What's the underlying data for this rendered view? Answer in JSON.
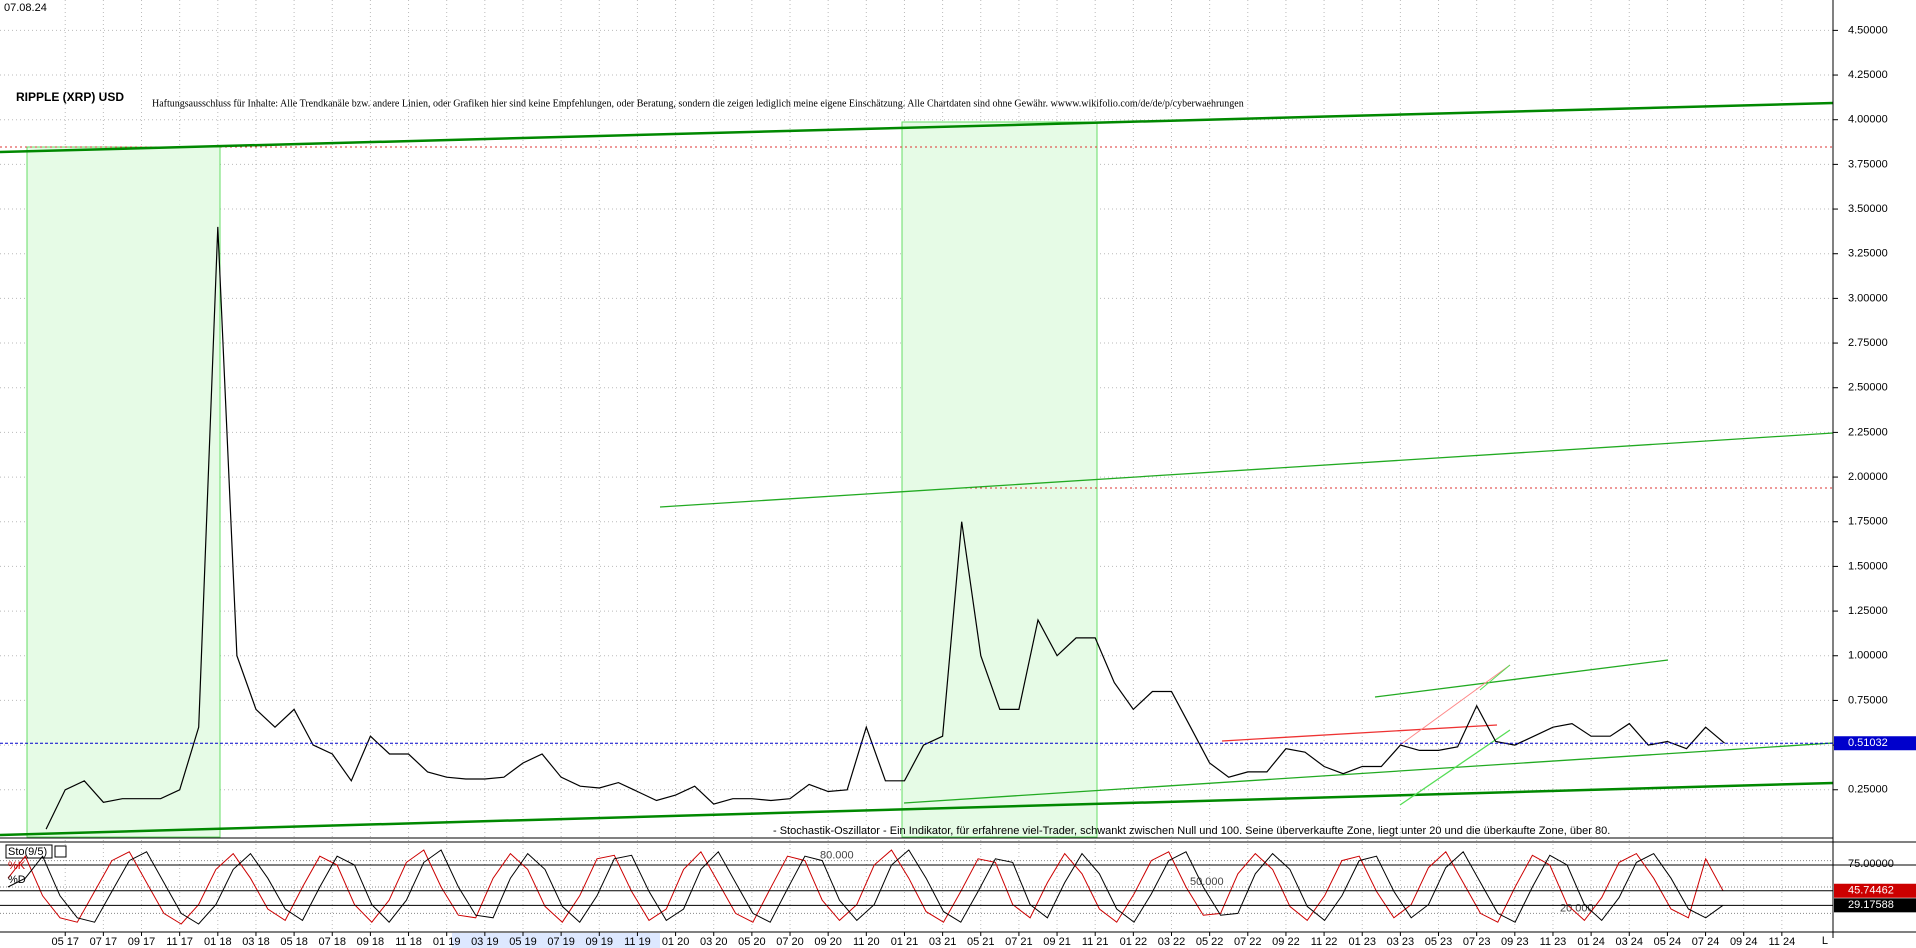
{
  "chart_data": [
    {
      "type": "line",
      "date": "07.08.24",
      "title": "RIPPLE (XRP) USD",
      "subtitle": "Haftungsausschluss für Inhalte: Alle Trendkanäle bzw. andere Linien, oder Grafiken hier sind keine Empfehlungen, oder Beratung, sondern die zeigen lediglich meine eigene Einschätzung. Alle Chartdaten sind ohne Gewähr.  wwww.wikifolio.com/de/de/p/cyberwaehrungen",
      "x": [
        "2017-04",
        "2017-05",
        "2017-06",
        "2017-07",
        "2017-08",
        "2017-09",
        "2017-10",
        "2017-11",
        "2017-12",
        "2018-01",
        "2018-02",
        "2018-03",
        "2018-04",
        "2018-05",
        "2018-06",
        "2018-07",
        "2018-08",
        "2018-09",
        "2018-10",
        "2018-11",
        "2018-12",
        "2019-01",
        "2019-02",
        "2019-03",
        "2019-04",
        "2019-05",
        "2019-06",
        "2019-07",
        "2019-08",
        "2019-09",
        "2019-10",
        "2019-11",
        "2019-12",
        "2020-01",
        "2020-02",
        "2020-03",
        "2020-04",
        "2020-05",
        "2020-06",
        "2020-07",
        "2020-08",
        "2020-09",
        "2020-10",
        "2020-11",
        "2020-12",
        "2021-01",
        "2021-02",
        "2021-03",
        "2021-04",
        "2021-05",
        "2021-06",
        "2021-07",
        "2021-08",
        "2021-09",
        "2021-10",
        "2021-11",
        "2021-12",
        "2022-01",
        "2022-02",
        "2022-03",
        "2022-04",
        "2022-05",
        "2022-06",
        "2022-07",
        "2022-08",
        "2022-09",
        "2022-10",
        "2022-11",
        "2022-12",
        "2023-01",
        "2023-02",
        "2023-03",
        "2023-04",
        "2023-05",
        "2023-06",
        "2023-07",
        "2023-08",
        "2023-09",
        "2023-10",
        "2023-11",
        "2023-12",
        "2024-01",
        "2024-02",
        "2024-03",
        "2024-04",
        "2024-05",
        "2024-06",
        "2024-07",
        "2024-08"
      ],
      "values": [
        0.03,
        0.25,
        0.3,
        0.18,
        0.2,
        0.2,
        0.2,
        0.25,
        0.6,
        3.4,
        1.0,
        0.7,
        0.6,
        0.7,
        0.5,
        0.45,
        0.3,
        0.55,
        0.45,
        0.45,
        0.35,
        0.32,
        0.31,
        0.31,
        0.32,
        0.4,
        0.45,
        0.32,
        0.27,
        0.26,
        0.29,
        0.24,
        0.19,
        0.22,
        0.27,
        0.17,
        0.2,
        0.2,
        0.19,
        0.2,
        0.28,
        0.24,
        0.25,
        0.6,
        0.3,
        0.3,
        0.5,
        0.55,
        1.75,
        1.0,
        0.7,
        0.7,
        1.2,
        1.0,
        1.1,
        1.1,
        0.85,
        0.7,
        0.8,
        0.8,
        0.6,
        0.4,
        0.32,
        0.35,
        0.35,
        0.48,
        0.46,
        0.38,
        0.34,
        0.38,
        0.38,
        0.5,
        0.47,
        0.47,
        0.49,
        0.72,
        0.52,
        0.5,
        0.55,
        0.6,
        0.62,
        0.55,
        0.55,
        0.62,
        0.5,
        0.52,
        0.48,
        0.6,
        0.51032
      ],
      "color": "#000000",
      "last_value_color": "#0000cc",
      "xlim": [
        "2017-02",
        "2025-01"
      ],
      "xticks": [
        {
          "value": "2017-05",
          "label": "05 17"
        },
        {
          "value": "2017-07",
          "label": "07 17"
        },
        {
          "value": "2017-09",
          "label": "09 17"
        },
        {
          "value": "2017-11",
          "label": "11 17"
        },
        {
          "value": "2018-01",
          "label": "01 18"
        },
        {
          "value": "2018-03",
          "label": "03 18"
        },
        {
          "value": "2018-05",
          "label": "05 18"
        },
        {
          "value": "2018-07",
          "label": "07 18"
        },
        {
          "value": "2018-09",
          "label": "09 18"
        },
        {
          "value": "2018-11",
          "label": "11 18"
        },
        {
          "value": "2019-01",
          "label": "01 19"
        },
        {
          "value": "2019-03",
          "label": "03 19"
        },
        {
          "value": "2019-05",
          "label": "05 19"
        },
        {
          "value": "2019-07",
          "label": "07 19"
        },
        {
          "value": "2019-09",
          "label": "09 19"
        },
        {
          "value": "2019-11",
          "label": "11 19"
        },
        {
          "value": "2020-01",
          "label": "01 20"
        },
        {
          "value": "2020-03",
          "label": "03 20"
        },
        {
          "value": "2020-05",
          "label": "05 20"
        },
        {
          "value": "2020-07",
          "label": "07 20"
        },
        {
          "value": "2020-09",
          "label": "09 20"
        },
        {
          "value": "2020-11",
          "label": "11 20"
        },
        {
          "value": "2021-01",
          "label": "01 21"
        },
        {
          "value": "2021-03",
          "label": "03 21"
        },
        {
          "value": "2021-05",
          "label": "05 21"
        },
        {
          "value": "2021-07",
          "label": "07 21"
        },
        {
          "value": "2021-09",
          "label": "09 21"
        },
        {
          "value": "2021-11",
          "label": "11 21"
        },
        {
          "value": "2022-01",
          "label": "01 22"
        },
        {
          "value": "2022-03",
          "label": "03 22"
        },
        {
          "value": "2022-05",
          "label": "05 22"
        },
        {
          "value": "2022-07",
          "label": "07 22"
        },
        {
          "value": "2022-09",
          "label": "09 22"
        },
        {
          "value": "2022-11",
          "label": "11 22"
        },
        {
          "value": "2023-01",
          "label": "01 23"
        },
        {
          "value": "2023-03",
          "label": "03 23"
        },
        {
          "value": "2023-05",
          "label": "05 23"
        },
        {
          "value": "2023-07",
          "label": "07 23"
        },
        {
          "value": "2023-09",
          "label": "09 23"
        },
        {
          "value": "2023-11",
          "label": "11 23"
        },
        {
          "value": "2024-01",
          "label": "01 24"
        },
        {
          "value": "2024-03",
          "label": "03 24"
        },
        {
          "value": "2024-05",
          "label": "05 24"
        },
        {
          "value": "2024-07",
          "label": "07 24"
        },
        {
          "value": "2024-09",
          "label": "09 24"
        },
        {
          "value": "2024-11",
          "label": "11 24"
        }
      ],
      "ylim": [
        -0.02,
        4.67
      ],
      "yticks": [
        {
          "value": 0.25,
          "label": "0.25000"
        },
        {
          "value": 0.5,
          "label": "0.50000"
        },
        {
          "value": 0.75,
          "label": "0.75000"
        },
        {
          "value": 1,
          "label": "1.00000"
        },
        {
          "value": 1.25,
          "label": "1.25000"
        },
        {
          "value": 1.5,
          "label": "1.50000"
        },
        {
          "value": 1.75,
          "label": "1.75000"
        },
        {
          "value": 2,
          "label": "2.00000"
        },
        {
          "value": 2.25,
          "label": "2.25000"
        },
        {
          "value": 2.5,
          "label": "2.50000"
        },
        {
          "value": 2.75,
          "label": "2.75000"
        },
        {
          "value": 3,
          "label": "3.00000"
        },
        {
          "value": 3.25,
          "label": "3.25000"
        },
        {
          "value": 3.5,
          "label": "3.50000"
        },
        {
          "value": 3.75,
          "label": "3.75000"
        },
        {
          "value": 4,
          "label": "4.00000"
        },
        {
          "value": 4.25,
          "label": "4.25000"
        },
        {
          "value": 4.5,
          "label": "4.50000"
        }
      ],
      "grid": true
    },
    {
      "type": "line",
      "title": "Sto(9/5)",
      "annotation": "- Stochastik-Oszillator - Ein Indikator, für erfahrene viel-Trader, schwankt zwischen Null und 100. Seine überverkaufte Zone, liegt unter 20 und die überkaufte Zone, über 80.",
      "series": [
        {
          "name": "%K",
          "color": "#cc0000",
          "values": [
            60,
            85,
            40,
            15,
            10,
            45,
            80,
            90,
            55,
            20,
            8,
            30,
            70,
            88,
            60,
            25,
            12,
            50,
            85,
            75,
            30,
            10,
            35,
            78,
            92,
            50,
            18,
            15,
            60,
            88,
            70,
            28,
            10,
            40,
            82,
            86,
            45,
            12,
            25,
            70,
            90,
            55,
            20,
            10,
            48,
            85,
            80,
            35,
            12,
            30,
            75,
            92,
            60,
            22,
            10,
            45,
            82,
            78,
            30,
            15,
            55,
            88,
            65,
            25,
            10,
            42,
            80,
            90,
            50,
            18,
            20,
            65,
            88,
            70,
            28,
            12,
            40,
            80,
            85,
            45,
            15,
            30,
            72,
            90,
            55,
            20,
            10,
            50,
            86,
            75,
            30,
            12,
            38,
            78,
            88,
            60,
            25,
            15,
            82,
            45.74462
          ]
        },
        {
          "name": "%D",
          "color": "#000000",
          "values": [
            50,
            60,
            85,
            40,
            15,
            10,
            45,
            80,
            90,
            55,
            20,
            8,
            30,
            70,
            88,
            60,
            25,
            12,
            50,
            85,
            75,
            30,
            10,
            35,
            78,
            92,
            50,
            18,
            15,
            60,
            88,
            70,
            28,
            10,
            40,
            82,
            86,
            45,
            12,
            25,
            70,
            90,
            55,
            20,
            10,
            48,
            85,
            80,
            35,
            12,
            30,
            75,
            92,
            60,
            22,
            10,
            45,
            82,
            78,
            30,
            15,
            55,
            88,
            65,
            25,
            10,
            42,
            80,
            90,
            50,
            18,
            20,
            65,
            88,
            70,
            28,
            12,
            40,
            80,
            85,
            45,
            15,
            30,
            72,
            90,
            55,
            20,
            10,
            50,
            86,
            75,
            30,
            12,
            38,
            78,
            88,
            60,
            25,
            15,
            29.17588
          ]
        }
      ],
      "ylim": [
        0,
        100
      ],
      "yticks": [
        {
          "value": 75,
          "label": "75.00000"
        }
      ],
      "levels": [
        {
          "value": 80,
          "label": "80.000"
        },
        {
          "value": 50,
          "label": "50.000"
        },
        {
          "value": 20,
          "label": "20.000"
        }
      ],
      "scale_label": "L"
    }
  ]
}
